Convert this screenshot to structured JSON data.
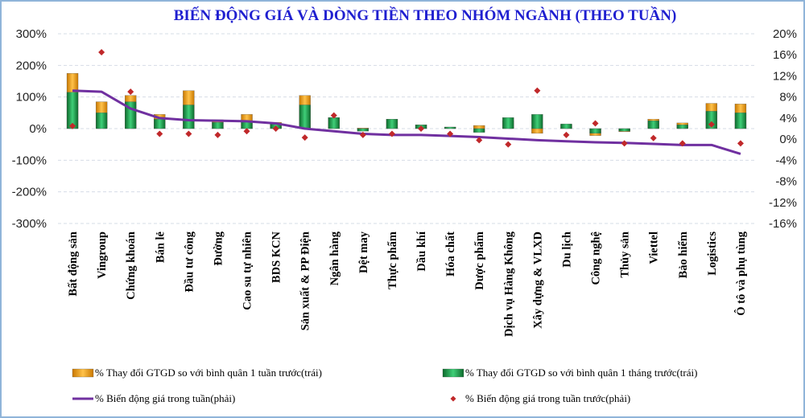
{
  "chart_data": {
    "type": "bar",
    "title": "BIẾN ĐỘNG GIÁ VÀ DÒNG TIỀN THEO NHÓM NGÀNH (THEO TUẦN)",
    "categories": [
      "Bất động sản",
      "Vingroup",
      "Chứng khoán",
      "Bán lẻ",
      "Đầu tư công",
      "Đường",
      "Cao su tự nhiên",
      "BDS KCN",
      "Sản xuất & PP Điện",
      "Ngân hàng",
      "Dệt may",
      "Thực phẩm",
      "Dầu khí",
      "Hóa chất",
      "Dược phẩm",
      "Dịch vụ Hàng Không",
      "Xây dựng & VLXD",
      "Du lịch",
      "Công nghệ",
      "Thủy sản",
      "Viettel",
      "Bảo hiểm",
      "Logistics",
      "Ô tô và phụ tùng"
    ],
    "left_axis": {
      "min": -300,
      "max": 300,
      "ticks": [
        "300%",
        "200%",
        "100%",
        "0%",
        "-100%",
        "-200%",
        "-300%"
      ]
    },
    "right_axis": {
      "min": -16,
      "max": 20,
      "ticks": [
        "20%",
        "16%",
        "12%",
        "8%",
        "4%",
        "0%",
        "-4%",
        "-8%",
        "-12%",
        "-16%"
      ]
    },
    "series": [
      {
        "name": "% Thay đổi GTGD so với bình quân 1 tuần trước(trái)",
        "type": "bar",
        "axis": "left",
        "color": "#f0a020",
        "values": [
          175,
          85,
          105,
          45,
          120,
          28,
          45,
          20,
          105,
          35,
          2,
          30,
          12,
          5,
          10,
          25,
          -15,
          12,
          -22,
          -10,
          30,
          18,
          80,
          78
        ]
      },
      {
        "name": "% Thay đổi GTGD so với bình quân 1 tháng trước(trái)",
        "type": "bar",
        "axis": "left",
        "color": "#1f9a4a",
        "values": [
          115,
          50,
          85,
          30,
          75,
          20,
          25,
          15,
          75,
          35,
          -8,
          30,
          12,
          5,
          -12,
          35,
          45,
          15,
          -15,
          -8,
          25,
          12,
          55,
          50
        ]
      },
      {
        "name": "% Biến động giá trong tuần(phải)",
        "type": "line",
        "axis": "right",
        "color": "#7030a0",
        "values": [
          9.2,
          9.0,
          5.8,
          4.0,
          3.6,
          3.5,
          3.4,
          3.0,
          2.0,
          1.5,
          1.0,
          0.8,
          0.8,
          0.6,
          0.4,
          0.1,
          -0.2,
          -0.4,
          -0.6,
          -0.7,
          -0.9,
          -1.1,
          -1.1,
          -2.8
        ]
      },
      {
        "name": "% Biến động giá trong tuần trước(phải)",
        "type": "scatter",
        "axis": "right",
        "color": "#c0282a",
        "values": [
          2.5,
          16.5,
          9.0,
          1.0,
          1.0,
          0.8,
          1.5,
          2.0,
          0.3,
          4.5,
          0.8,
          1.0,
          2.0,
          1.0,
          -0.2,
          -1.0,
          9.2,
          0.8,
          3.0,
          -0.8,
          0.2,
          -0.8,
          2.8,
          -0.8
        ]
      }
    ]
  }
}
